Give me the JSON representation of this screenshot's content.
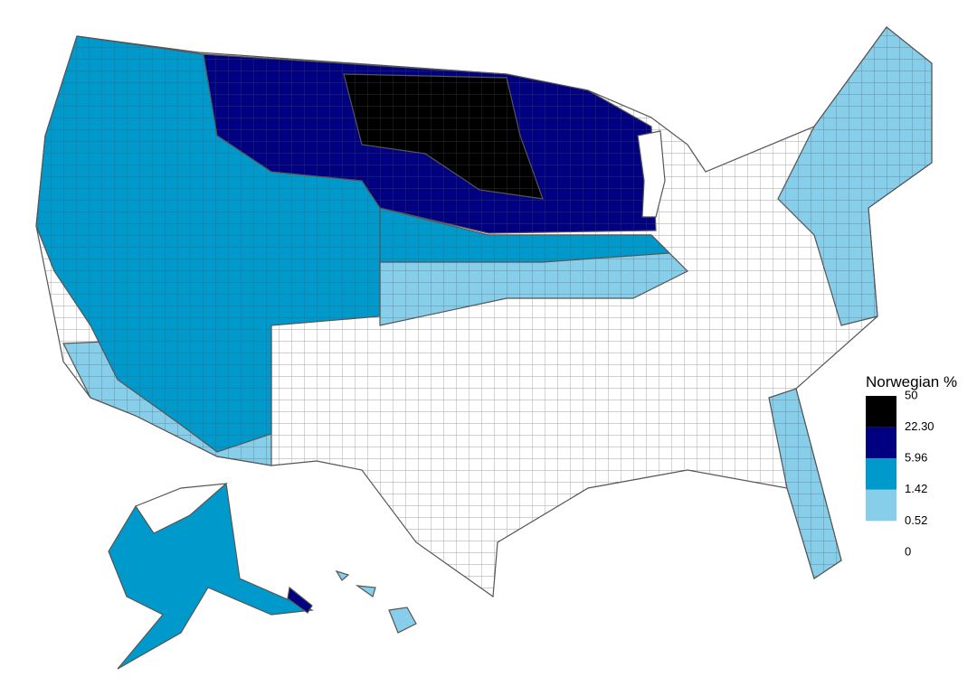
{
  "legend": {
    "title": "Norwegian %",
    "breaks": [
      50,
      {
        "value": 22.3,
        "label": "22.30"
      },
      5.96,
      1.42,
      0.52,
      0
    ],
    "colors": [
      "#000000",
      "#000080",
      "#0099cc",
      "#87ceeb",
      "#ffffff"
    ]
  }
}
